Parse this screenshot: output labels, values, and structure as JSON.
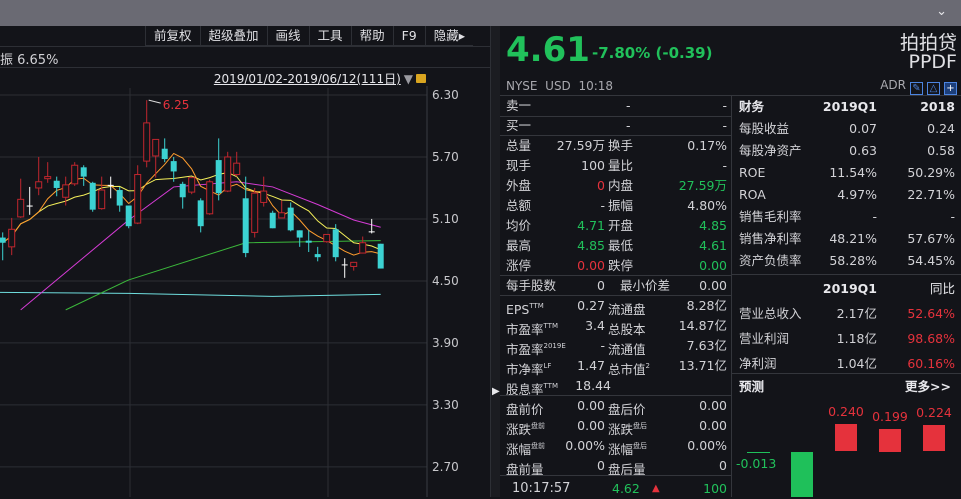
{
  "window": {
    "collapse_icon": "chevron-down-icon"
  },
  "toolbar": {
    "items": [
      "前复权",
      "超级叠加",
      "画线",
      "工具",
      "帮助",
      "F9",
      "隐藏▸"
    ]
  },
  "chart_header": {
    "amplitude_label": "振 6.65%",
    "date_range": "2019/01/02-2019/06/12(111日)",
    "lock_icon": "lock-icon"
  },
  "chart_data": {
    "type": "candlestick",
    "y_ticks": [
      "6.30",
      "5.70",
      "5.10",
      "4.50",
      "3.90",
      "3.30",
      "2.70"
    ],
    "ylim": [
      2.7,
      6.3
    ],
    "high_annotation": "6.25",
    "colors": {
      "up": "#c0262e",
      "down": "#3cd2d2",
      "doji": "#ffffff",
      "ma5": "#ff9d2e",
      "ma10": "#f5f05a",
      "ma20": "#d43bd4",
      "ma60": "#3bb83b",
      "ma250": "#6fdede"
    },
    "candles": [
      [
        4.92,
        4.97,
        4.7,
        4.87
      ],
      [
        4.83,
        5.11,
        4.75,
        5.0
      ],
      [
        5.12,
        5.49,
        5.11,
        5.29
      ],
      [
        5.23,
        5.41,
        5.14,
        5.22
      ],
      [
        5.4,
        5.7,
        5.33,
        5.46
      ],
      [
        5.49,
        5.65,
        5.45,
        5.51
      ],
      [
        5.47,
        5.51,
        5.32,
        5.4
      ],
      [
        5.31,
        5.51,
        5.23,
        5.43
      ],
      [
        5.44,
        5.65,
        5.42,
        5.62
      ],
      [
        5.6,
        5.62,
        5.42,
        5.51
      ],
      [
        5.45,
        5.46,
        5.17,
        5.19
      ],
      [
        5.2,
        5.51,
        5.19,
        5.38
      ],
      [
        5.43,
        5.51,
        5.3,
        5.42
      ],
      [
        5.38,
        5.41,
        5.17,
        5.23
      ],
      [
        5.23,
        5.23,
        5.01,
        5.03
      ],
      [
        5.06,
        5.62,
        5.05,
        5.53
      ],
      [
        5.66,
        6.25,
        5.6,
        6.03
      ],
      [
        5.71,
        5.87,
        5.5,
        5.87
      ],
      [
        5.78,
        5.88,
        5.65,
        5.68
      ],
      [
        5.66,
        5.7,
        5.46,
        5.56
      ],
      [
        5.44,
        5.46,
        5.2,
        5.31
      ],
      [
        5.36,
        5.51,
        5.34,
        5.5
      ],
      [
        5.28,
        5.3,
        4.97,
        5.03
      ],
      [
        5.15,
        5.48,
        5.14,
        5.46
      ],
      [
        5.67,
        5.88,
        5.28,
        5.35
      ],
      [
        5.37,
        5.75,
        5.36,
        5.7
      ],
      [
        5.53,
        5.75,
        5.51,
        5.64
      ],
      [
        5.3,
        5.51,
        4.73,
        4.77
      ],
      [
        4.97,
        5.4,
        4.92,
        5.35
      ],
      [
        5.26,
        5.51,
        5.22,
        5.37
      ],
      [
        5.16,
        5.18,
        5.01,
        5.01
      ],
      [
        5.11,
        5.28,
        5.11,
        5.16
      ],
      [
        5.21,
        5.26,
        4.98,
        4.99
      ],
      [
        4.99,
        4.99,
        4.83,
        4.92
      ],
      [
        4.89,
        4.99,
        4.78,
        4.87
      ],
      [
        4.76,
        4.83,
        4.69,
        4.73
      ],
      [
        4.88,
        4.95,
        4.87,
        4.95
      ],
      [
        5.0,
        5.05,
        4.69,
        4.73
      ],
      [
        4.66,
        4.72,
        4.53,
        4.66
      ],
      [
        4.64,
        4.68,
        4.6,
        4.68
      ],
      [
        4.77,
        4.93,
        4.77,
        4.87
      ],
      [
        4.98,
        5.1,
        4.96,
        4.98
      ],
      [
        4.86,
        4.86,
        4.62,
        4.62
      ]
    ],
    "ma20": [
      [
        2,
        4.22
      ],
      [
        14,
        5.09
      ],
      [
        19,
        5.41
      ],
      [
        26,
        5.46
      ],
      [
        30,
        5.41
      ],
      [
        35,
        5.24
      ],
      [
        39,
        5.09
      ],
      [
        42,
        5.02
      ]
    ],
    "ma60": [
      [
        7,
        4.22
      ],
      [
        14,
        4.51
      ],
      [
        27,
        4.87
      ],
      [
        42,
        4.89
      ]
    ],
    "ma250": [
      [
        0,
        4.39
      ],
      [
        14,
        4.38
      ],
      [
        30,
        4.35
      ],
      [
        42,
        4.37
      ]
    ]
  },
  "quote": {
    "price": "4.61",
    "change": "-7.80% (-0.39)",
    "exchange": "NYSE",
    "currency": "USD",
    "time": "10:18",
    "name_cn": "拍拍贷",
    "ticker": "PPDF",
    "adr": "ADR"
  },
  "orderbook": [
    {
      "label": "卖一",
      "price": "-",
      "vol": "-"
    },
    {
      "label": "买一",
      "price": "-",
      "vol": "-"
    }
  ],
  "stats": [
    [
      "总量",
      "27.59万",
      "",
      "换手",
      "0.17%",
      ""
    ],
    [
      "现手",
      "100",
      "",
      "量比",
      "-",
      ""
    ],
    [
      "外盘",
      "0",
      "r",
      "内盘",
      "27.59万",
      "g"
    ],
    [
      "总额",
      "-",
      "",
      "振幅",
      "4.80%",
      ""
    ],
    [
      "均价",
      "4.71",
      "g",
      "开盘",
      "4.85",
      "g"
    ],
    [
      "最高",
      "4.85",
      "g",
      "最低",
      "4.61",
      "g"
    ],
    [
      "涨停",
      "0.00",
      "r",
      "跌停",
      "0.00",
      "g"
    ]
  ],
  "lot": {
    "label": "每手股数",
    "value": "0",
    "label2": "最小价差",
    "value2": "0.00"
  },
  "valuation": [
    [
      "EPS",
      "TTM",
      "0.27",
      "流通盘",
      "",
      "8.28亿"
    ],
    [
      "市盈率",
      "TTM",
      "3.4",
      "总股本",
      "",
      "14.87亿"
    ],
    [
      "市盈率",
      "2019E",
      "-",
      "流通值",
      "",
      "7.63亿"
    ],
    [
      "市净率",
      "LF",
      "1.47",
      "总市值",
      "2",
      "13.71亿"
    ],
    [
      "股息率",
      "TTM",
      "18.44",
      "",
      "",
      ""
    ]
  ],
  "extended": [
    [
      "盘前价",
      "",
      "0.00",
      "盘后价",
      "",
      "0.00"
    ],
    [
      "涨跌",
      "盘前",
      "0.00",
      "涨跌",
      "盘后",
      "0.00"
    ],
    [
      "涨幅",
      "盘前",
      "0.00%",
      "涨幅",
      "盘后",
      "0.00%"
    ],
    [
      "盘前量",
      "",
      "0",
      "盘后量",
      "",
      "0"
    ]
  ],
  "tick": {
    "time": "10:17:57",
    "price": "4.62",
    "arrow": "▲",
    "vol": "100"
  },
  "finance": {
    "header": [
      "财务",
      "2019Q1",
      "2018"
    ],
    "rows": [
      [
        "每股收益",
        "0.07",
        "0.24"
      ],
      [
        "每股净资产",
        "0.63",
        "0.58"
      ],
      [
        "ROE",
        "11.54%",
        "50.29%"
      ],
      [
        "ROA",
        "4.97%",
        "22.71%"
      ],
      [
        "销售毛利率",
        "-",
        "-"
      ],
      [
        "销售净利率",
        "48.21%",
        "57.67%"
      ],
      [
        "资产负债率",
        "58.28%",
        "54.45%"
      ]
    ]
  },
  "income": {
    "header": [
      "",
      "2019Q1",
      "同比"
    ],
    "rows": [
      [
        "营业总收入",
        "2.17亿",
        "52.64%"
      ],
      [
        "营业利润",
        "1.18亿",
        "98.68%"
      ],
      [
        "净利润",
        "1.04亿",
        "60.16%"
      ]
    ]
  },
  "forecast": {
    "title": "预测",
    "more": "更多>>",
    "values": [
      "-0.013",
      "0.240",
      "0.199",
      "0.224"
    ]
  }
}
